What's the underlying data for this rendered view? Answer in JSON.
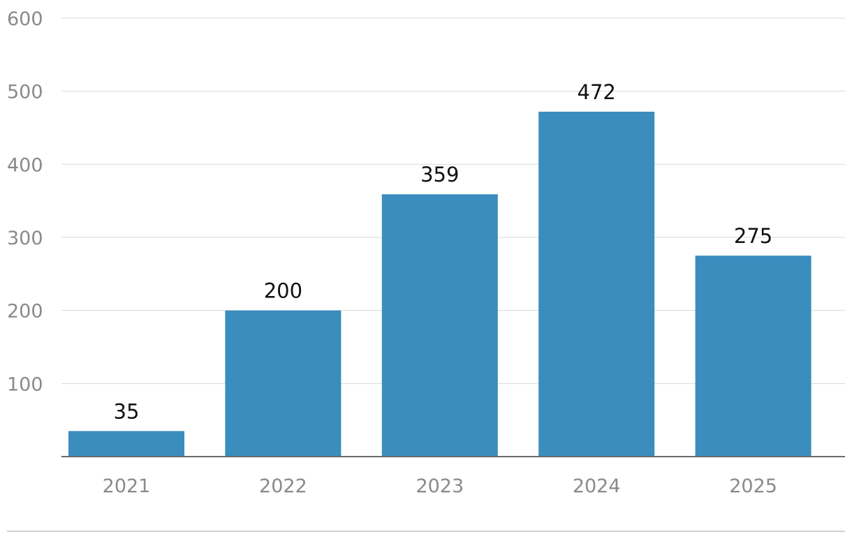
{
  "chart_data": {
    "type": "bar",
    "categories": [
      "2021",
      "2022",
      "2023",
      "2024",
      "2025"
    ],
    "values": [
      35,
      200,
      359,
      472,
      275
    ],
    "data_labels": [
      "35",
      "200",
      "359",
      "472",
      "275"
    ],
    "title": "",
    "xlabel": "",
    "ylabel": "",
    "ylim": [
      0,
      600
    ],
    "yticks": [
      100,
      200,
      300,
      400,
      500,
      600
    ],
    "ytick_labels": [
      "100",
      "200",
      "300",
      "400",
      "500",
      "600"
    ],
    "grid": true,
    "legend": "none",
    "colors": {
      "bar": "#3a8dbd"
    }
  }
}
